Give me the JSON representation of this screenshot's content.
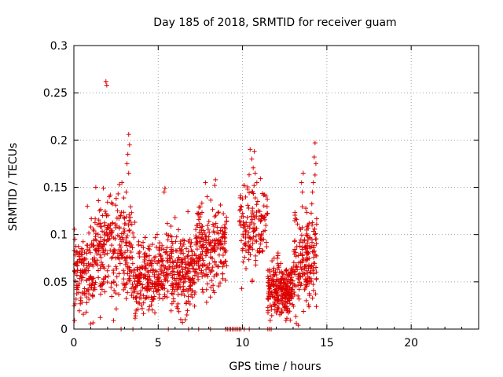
{
  "chart_data": {
    "type": "scatter",
    "title": "Day 185 of 2018, SRMTID for receiver guam",
    "xlabel": "GPS time / hours",
    "ylabel": "SRMTID / TECUs",
    "xlim": [
      0,
      24
    ],
    "ylim": [
      0,
      0.3
    ],
    "x_ticks": [
      0,
      5,
      10,
      15,
      20
    ],
    "x_tick_labels": [
      "0",
      "5",
      "10",
      "15",
      "20"
    ],
    "y_ticks": [
      0,
      0.05,
      0.1,
      0.15,
      0.2,
      0.25,
      0.3
    ],
    "y_tick_labels": [
      "0",
      "0.05",
      "0.1",
      "0.15",
      "0.2",
      "0.25",
      "0.3"
    ],
    "grid": true,
    "marker": "+",
    "marker_color": "#dd0000",
    "series": [
      {
        "name": "SRMTID",
        "color": "#dd0000",
        "marker": "+",
        "note": "approximately 1700 points; data present from about 0 to 9.1 h and from about 9.8 to 14.4 h; a short row of points sits at 0 between about 9 and 10 h",
        "clusters": [
          {
            "x_range": [
              0.0,
              1.2
            ],
            "y_mean": 0.06,
            "y_spread": 0.03,
            "n": 140
          },
          {
            "x_range": [
              1.2,
              3.5
            ],
            "y_mean": 0.085,
            "y_spread": 0.035,
            "n": 260
          },
          {
            "x_range": [
              3.5,
              5.5
            ],
            "y_mean": 0.058,
            "y_spread": 0.025,
            "n": 240
          },
          {
            "x_range": [
              5.5,
              7.2
            ],
            "y_mean": 0.06,
            "y_spread": 0.028,
            "n": 220
          },
          {
            "x_range": [
              7.2,
              9.1
            ],
            "y_mean": 0.085,
            "y_spread": 0.03,
            "n": 220
          },
          {
            "x_range": [
              9.8,
              11.5
            ],
            "y_mean": 0.11,
            "y_spread": 0.035,
            "n": 140
          },
          {
            "x_range": [
              11.5,
              13.0
            ],
            "y_mean": 0.042,
            "y_spread": 0.018,
            "n": 260
          },
          {
            "x_range": [
              13.0,
              14.4
            ],
            "y_mean": 0.075,
            "y_spread": 0.035,
            "n": 190
          }
        ],
        "notable_points": [
          {
            "x": 1.9,
            "y": 0.262
          },
          {
            "x": 1.95,
            "y": 0.258
          },
          {
            "x": 3.25,
            "y": 0.206
          },
          {
            "x": 3.3,
            "y": 0.195
          },
          {
            "x": 3.2,
            "y": 0.185
          },
          {
            "x": 3.15,
            "y": 0.175
          },
          {
            "x": 3.25,
            "y": 0.165
          },
          {
            "x": 2.85,
            "y": 0.155
          },
          {
            "x": 3.1,
            "y": 0.145
          },
          {
            "x": 0.8,
            "y": 0.13
          },
          {
            "x": 1.3,
            "y": 0.15
          },
          {
            "x": 2.7,
            "y": 0.153
          },
          {
            "x": 2.1,
            "y": 0.14
          },
          {
            "x": 10.45,
            "y": 0.19
          },
          {
            "x": 10.55,
            "y": 0.18
          },
          {
            "x": 10.7,
            "y": 0.188
          },
          {
            "x": 10.75,
            "y": 0.165
          },
          {
            "x": 10.85,
            "y": 0.155
          },
          {
            "x": 10.6,
            "y": 0.145
          },
          {
            "x": 10.3,
            "y": 0.148
          },
          {
            "x": 10.9,
            "y": 0.135
          },
          {
            "x": 11.1,
            "y": 0.12
          },
          {
            "x": 14.3,
            "y": 0.197
          },
          {
            "x": 14.25,
            "y": 0.182
          },
          {
            "x": 14.35,
            "y": 0.175
          },
          {
            "x": 14.3,
            "y": 0.163
          },
          {
            "x": 14.2,
            "y": 0.155
          },
          {
            "x": 14.15,
            "y": 0.145
          },
          {
            "x": 13.5,
            "y": 0.155
          },
          {
            "x": 13.55,
            "y": 0.145
          },
          {
            "x": 13.6,
            "y": 0.165
          },
          {
            "x": 9.9,
            "y": 0.13
          },
          {
            "x": 10.1,
            "y": 0.11
          },
          {
            "x": 9.95,
            "y": 0.043
          },
          {
            "x": 8.4,
            "y": 0.158
          },
          {
            "x": 8.35,
            "y": 0.152
          },
          {
            "x": 7.9,
            "y": 0.14
          },
          {
            "x": 7.8,
            "y": 0.155
          },
          {
            "x": 5.4,
            "y": 0.149
          },
          {
            "x": 5.35,
            "y": 0.145
          },
          {
            "x": 6.0,
            "y": 0.118
          },
          {
            "x": 6.6,
            "y": 0.01
          },
          {
            "x": 6.7,
            "y": 0.015
          },
          {
            "x": 2.35,
            "y": 0.009
          },
          {
            "x": 13.3,
            "y": 0.004
          }
        ],
        "zero_points_x": [
          2.8,
          3.5,
          5.6,
          6.8,
          7.4,
          8.1,
          9.0,
          9.1,
          9.2,
          9.3,
          9.4,
          9.5,
          9.6,
          9.7,
          9.8,
          9.9,
          10.1,
          10.4,
          11.5,
          11.6,
          11.7
        ]
      }
    ]
  }
}
